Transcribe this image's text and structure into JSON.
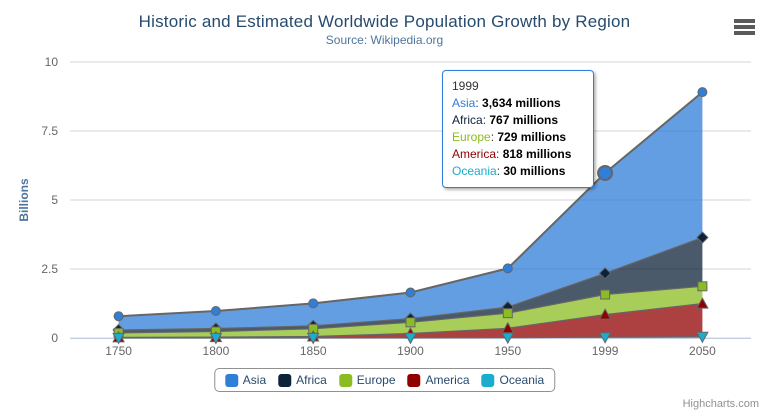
{
  "chart": {
    "title": "Historic and Estimated Worldwide Population Growth by Region",
    "subtitle": "Source: Wikipedia.org",
    "credits": "Highcharts.com"
  },
  "chart_data": {
    "type": "area",
    "stacking": "normal",
    "title": "Historic and Estimated Worldwide Population Growth by Region",
    "subtitle": "Source: Wikipedia.org",
    "categories": [
      "1750",
      "1800",
      "1850",
      "1900",
      "1950",
      "1999",
      "2050"
    ],
    "unit": "millions",
    "series": [
      {
        "name": "Asia",
        "color": "#2f7ed8",
        "marker": "circle",
        "values": [
          502,
          635,
          809,
          947,
          1402,
          3634,
          5268
        ]
      },
      {
        "name": "Africa",
        "color": "#0d233a",
        "marker": "diamond",
        "values": [
          106,
          107,
          111,
          133,
          221,
          767,
          1766
        ]
      },
      {
        "name": "Europe",
        "color": "#8bbc21",
        "marker": "square",
        "values": [
          163,
          203,
          276,
          408,
          547,
          729,
          628
        ]
      },
      {
        "name": "America",
        "color": "#910000",
        "marker": "triangle",
        "values": [
          18,
          31,
          54,
          156,
          339,
          818,
          1201
        ]
      },
      {
        "name": "Oceania",
        "color": "#1aadce",
        "marker": "triangle-down",
        "values": [
          2,
          2,
          2,
          6,
          13,
          30,
          46
        ]
      }
    ],
    "stack_order_bottom_to_top": [
      "Oceania",
      "America",
      "Europe",
      "Africa",
      "Asia"
    ],
    "ylabel": "Billions",
    "xlabel": "",
    "yticks": [
      0,
      2.5,
      5,
      7.5,
      10
    ],
    "ylim": [
      0,
      10
    ],
    "grid": true,
    "legend_position": "bottom",
    "hover": {
      "series": "Asia",
      "category": "1999"
    }
  },
  "tooltip": {
    "header": "1999",
    "border_color": "#2f7ed8",
    "rows": [
      {
        "name": "Asia",
        "color": "#2f7ed8",
        "value": "3,634 millions"
      },
      {
        "name": "Africa",
        "color": "#0d233a",
        "value": "767 millions"
      },
      {
        "name": "Europe",
        "color": "#8bbc21",
        "value": "729 millions"
      },
      {
        "name": "America",
        "color": "#910000",
        "value": "818 millions"
      },
      {
        "name": "Oceania",
        "color": "#1aadce",
        "value": "30 millions"
      }
    ]
  }
}
